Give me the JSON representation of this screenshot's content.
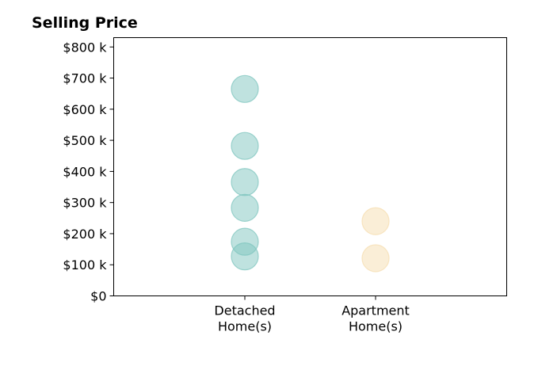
{
  "chart_data": {
    "type": "scatter",
    "title": "Selling Price",
    "xlabel": "",
    "ylabel": "",
    "categories": [
      "Detached Home(s)",
      "Apartment Home(s)"
    ],
    "category_lines": [
      [
        "Detached",
        "Home(s)"
      ],
      [
        "Apartment",
        "Home(s)"
      ]
    ],
    "ylim": [
      0,
      830
    ],
    "yticks": [
      0,
      100,
      200,
      300,
      400,
      500,
      600,
      700,
      800
    ],
    "ytick_labels": [
      "$0",
      "$100 k",
      "$200 k",
      "$300 k",
      "$400 k",
      "$500 k",
      "$600 k",
      "$700 k",
      "$800 k"
    ],
    "grid": false,
    "series": [
      {
        "category": "Detached Home(s)",
        "color": "#7fc6bf",
        "values": [
          665,
          482,
          366,
          283,
          174,
          127
        ]
      },
      {
        "category": "Apartment Home(s)",
        "color": "#f5deb0",
        "values": [
          240,
          121
        ]
      }
    ]
  }
}
